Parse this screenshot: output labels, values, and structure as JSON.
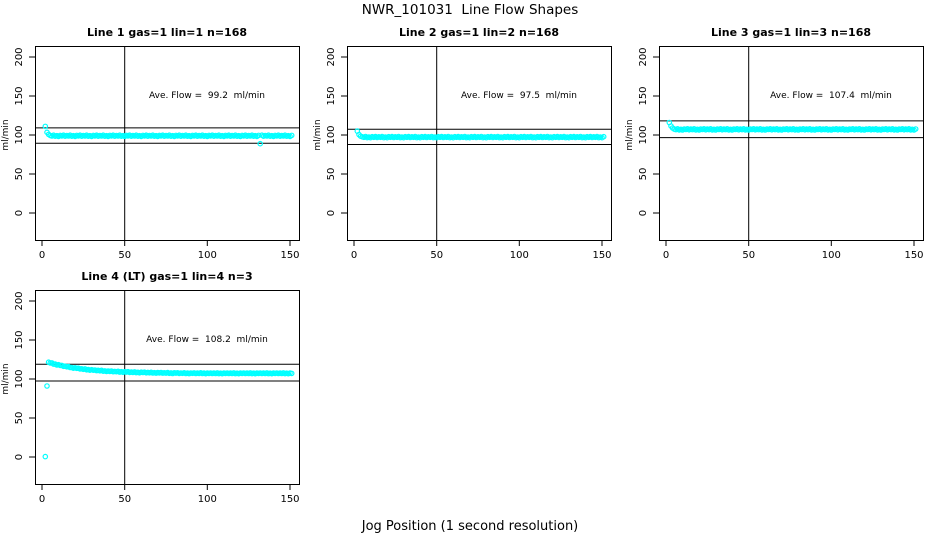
{
  "title": "NWR_101031  Line Flow Shapes",
  "xlabel": "Jog Position (1 second resolution)",
  "colors": {
    "points": "#00ffff",
    "axis": "#000000",
    "background": "#ffffff"
  },
  "chart_data": [
    {
      "type": "scatter",
      "title": "Line 1 gas=1 lin=1 n=168",
      "ylabel": "ml/min",
      "annotation": "Ave. Flow =  99.2  ml/min",
      "ave_flow": 99.2,
      "ref_lines_y": [
        109.1,
        89.3
      ],
      "vline_x": 50,
      "xlim": [
        -4.5,
        156
      ],
      "ylim": [
        -35,
        215
      ],
      "xticks": [
        0,
        50,
        100,
        150
      ],
      "yticks": [
        0,
        50,
        100,
        150,
        200
      ],
      "x_start": 2,
      "x_step": 1,
      "y": [
        111.0,
        103.5,
        100.8,
        99.4,
        98.7,
        99.8,
        98.4,
        99.1,
        98.2,
        99.5,
        98.8,
        99.7,
        98.5,
        99.4,
        98.7,
        99.8,
        98.4,
        99.1,
        98.2,
        99.5,
        98.8,
        99.7,
        98.5,
        99.4,
        98.7,
        99.8,
        98.4,
        99.1,
        98.2,
        99.5,
        98.8,
        99.7,
        98.5,
        99.4,
        98.7,
        99.8,
        98.4,
        99.1,
        98.2,
        99.5,
        98.8,
        99.7,
        98.5,
        99.4,
        98.7,
        99.8,
        98.4,
        99.1,
        98.2,
        99.5,
        98.8,
        99.7,
        98.5,
        99.4,
        98.7,
        99.8,
        98.4,
        99.1,
        98.2,
        99.5,
        98.8,
        99.7,
        98.5,
        99.4,
        98.7,
        99.8,
        98.4,
        99.1,
        98.2,
        99.5,
        98.8,
        99.7,
        98.5,
        99.4,
        98.7,
        99.8,
        98.4,
        99.1,
        98.2,
        99.5,
        98.8,
        99.7,
        98.5,
        99.4,
        98.7,
        99.8,
        98.4,
        99.1,
        98.2,
        99.5,
        98.8,
        99.7,
        98.5,
        99.4,
        98.7,
        99.8,
        98.4,
        99.1,
        98.2,
        99.5,
        98.8,
        99.7,
        98.5,
        99.4,
        98.7,
        99.8,
        98.4,
        99.1,
        98.2,
        99.5,
        98.8,
        99.7,
        98.5,
        99.4,
        98.7,
        99.8,
        98.4,
        99.1,
        98.2,
        99.5,
        98.8,
        99.7,
        98.5,
        99.4,
        98.7,
        99.8,
        98.4,
        99.1,
        98.2,
        99.5,
        88.8,
        99.7,
        98.5,
        99.4,
        98.7,
        99.8,
        98.4,
        99.1,
        98.2,
        99.5,
        98.8,
        99.7,
        98.5,
        99.4,
        98.7,
        99.8,
        98.4,
        99.1,
        98.2,
        99.5
      ]
    },
    {
      "type": "scatter",
      "title": "Line 2 gas=1 lin=2 n=168",
      "ylabel": "ml/min",
      "annotation": "Ave. Flow =  97.5  ml/min",
      "ave_flow": 97.5,
      "ref_lines_y": [
        107.3,
        87.8
      ],
      "vline_x": 50,
      "xlim": [
        -4.5,
        156
      ],
      "ylim": [
        -35,
        215
      ],
      "xticks": [
        0,
        50,
        100,
        150
      ],
      "yticks": [
        0,
        50,
        100,
        150,
        200
      ],
      "x_start": 2,
      "x_step": 1,
      "y": [
        105.0,
        100.5,
        98.5,
        97.7,
        97.0,
        98.1,
        96.7,
        97.4,
        96.5,
        97.8,
        97.1,
        98.0,
        96.8,
        97.7,
        97.0,
        98.1,
        96.7,
        97.4,
        96.5,
        97.8,
        97.1,
        98.0,
        96.8,
        97.7,
        97.0,
        98.1,
        96.7,
        97.4,
        96.5,
        97.8,
        97.1,
        98.0,
        96.8,
        97.7,
        97.0,
        98.1,
        96.7,
        97.4,
        96.5,
        97.8,
        97.1,
        98.0,
        96.8,
        97.7,
        97.0,
        98.1,
        96.7,
        97.4,
        96.5,
        97.8,
        97.1,
        98.0,
        96.8,
        97.7,
        97.0,
        98.1,
        96.7,
        97.4,
        96.5,
        97.8,
        97.1,
        98.0,
        96.8,
        97.7,
        97.0,
        98.1,
        96.7,
        97.4,
        96.5,
        97.8,
        97.1,
        98.0,
        96.8,
        97.7,
        97.0,
        98.1,
        96.7,
        97.4,
        96.5,
        97.8,
        97.1,
        98.0,
        96.8,
        97.7,
        97.0,
        98.1,
        96.7,
        97.4,
        96.5,
        97.8,
        97.1,
        98.0,
        96.8,
        97.7,
        97.0,
        98.1,
        96.7,
        97.4,
        96.5,
        97.8,
        97.1,
        98.0,
        96.8,
        97.7,
        97.0,
        98.1,
        96.7,
        97.4,
        96.5,
        97.8,
        97.1,
        98.0,
        96.8,
        97.7,
        97.0,
        98.1,
        96.7,
        97.4,
        96.5,
        97.8,
        97.1,
        98.0,
        96.8,
        97.7,
        97.0,
        98.1,
        96.7,
        97.4,
        96.5,
        97.8,
        97.1,
        98.0,
        96.8,
        97.7,
        97.0,
        98.1,
        96.7,
        97.4,
        96.5,
        97.8,
        97.1,
        98.0,
        96.8,
        97.7,
        97.0,
        98.1,
        96.7,
        97.4,
        96.5,
        97.8
      ]
    },
    {
      "type": "scatter",
      "title": "Line 3 gas=1 lin=3 n=168",
      "ylabel": "ml/min",
      "annotation": "Ave. Flow =  107.4  ml/min",
      "ave_flow": 107.4,
      "ref_lines_y": [
        118.1,
        96.7
      ],
      "vline_x": 50,
      "xlim": [
        -4.5,
        156
      ],
      "ylim": [
        -35,
        215
      ],
      "xticks": [
        0,
        50,
        100,
        150
      ],
      "yticks": [
        0,
        50,
        100,
        150,
        200
      ],
      "x_start": 2,
      "x_step": 1,
      "y": [
        116.0,
        111.5,
        109.0,
        107.6,
        106.9,
        108.0,
        106.6,
        107.3,
        106.4,
        107.7,
        107.0,
        107.9,
        106.7,
        107.6,
        106.9,
        108.0,
        106.6,
        107.3,
        106.4,
        107.7,
        107.0,
        107.9,
        106.7,
        107.6,
        106.9,
        108.0,
        106.6,
        107.3,
        106.4,
        107.7,
        107.0,
        107.9,
        106.7,
        107.6,
        106.9,
        108.0,
        106.6,
        107.3,
        106.4,
        107.7,
        107.0,
        107.9,
        106.7,
        107.6,
        106.9,
        108.0,
        106.6,
        107.3,
        106.4,
        107.7,
        107.0,
        107.9,
        106.7,
        107.6,
        106.9,
        108.0,
        106.6,
        107.3,
        106.4,
        107.7,
        107.0,
        107.9,
        106.7,
        107.6,
        106.9,
        108.0,
        106.6,
        107.3,
        106.4,
        107.7,
        107.0,
        107.9,
        106.7,
        107.6,
        106.9,
        108.0,
        106.6,
        107.3,
        106.4,
        107.7,
        107.0,
        107.9,
        106.7,
        107.6,
        106.9,
        108.0,
        106.6,
        107.3,
        106.4,
        107.7,
        107.0,
        107.9,
        106.7,
        107.6,
        106.9,
        108.0,
        106.6,
        107.3,
        106.4,
        107.7,
        107.0,
        107.9,
        106.7,
        107.6,
        106.9,
        108.0,
        106.6,
        107.3,
        106.4,
        107.7,
        107.0,
        107.9,
        106.7,
        107.6,
        106.9,
        108.0,
        106.6,
        107.3,
        106.4,
        107.7,
        107.0,
        107.9,
        106.7,
        107.6,
        106.9,
        108.0,
        106.6,
        107.3,
        106.4,
        107.7,
        107.0,
        107.9,
        106.7,
        107.6,
        106.9,
        108.0,
        106.6,
        107.3,
        106.4,
        107.7,
        107.0,
        107.9,
        106.7,
        107.6,
        106.9,
        108.0,
        106.6,
        107.3,
        106.4,
        107.7
      ]
    },
    {
      "type": "scatter",
      "title": "Line 4 (LT) gas=1 lin=4 n=3",
      "ylabel": "ml/min",
      "annotation": "Ave. Flow =  108.2  ml/min",
      "ave_flow": 108.2,
      "ref_lines_y": [
        119.0,
        97.4
      ],
      "vline_x": 50,
      "xlim": [
        -4.5,
        156
      ],
      "ylim": [
        -35,
        215
      ],
      "xticks": [
        0,
        50,
        100,
        150
      ],
      "yticks": [
        0,
        50,
        100,
        150,
        200
      ],
      "x_start": 2,
      "x_step": 1,
      "y": [
        0.5,
        91.0,
        121.5,
        120.5,
        120.6,
        119.1,
        119.1,
        118.0,
        118.3,
        117.4,
        117.4,
        116.3,
        116.4,
        115.6,
        115.9,
        114.7,
        114.8,
        113.9,
        114.4,
        113.7,
        113.9,
        112.9,
        113.1,
        112.5,
        113.0,
        111.8,
        112.1,
        111.3,
        111.9,
        111.3,
        111.6,
        110.8,
        111.1,
        110.5,
        111.1,
        110.0,
        110.4,
        109.7,
        110.3,
        109.8,
        110.2,
        109.4,
        109.8,
        109.3,
        109.9,
        108.9,
        109.3,
        108.6,
        109.3,
        108.9,
        109.3,
        108.5,
        108.9,
        108.5,
        109.1,
        108.2,
        108.6,
        108.0,
        108.7,
        108.3,
        108.7,
        108.0,
        108.4,
        108.0,
        108.6,
        107.7,
        108.1,
        107.5,
        108.2,
        107.8,
        108.3,
        107.5,
        108.0,
        107.6,
        108.2,
        107.3,
        107.8,
        107.1,
        107.9,
        107.5,
        108.0,
        107.2,
        107.7,
        107.3,
        108.0,
        107.1,
        107.5,
        106.9,
        107.7,
        107.3,
        107.8,
        107.1,
        107.6,
        107.2,
        107.9,
        107.0,
        107.5,
        106.8,
        107.6,
        107.2,
        107.7,
        107.0,
        107.5,
        107.1,
        107.8,
        106.9,
        107.4,
        106.8,
        107.6,
        107.2,
        107.7,
        107.0,
        107.5,
        107.1,
        107.8,
        106.9,
        107.4,
        106.8,
        107.6,
        107.2,
        107.7,
        107.0,
        107.5,
        107.1,
        107.8,
        106.9,
        107.4,
        106.8,
        107.6,
        107.2,
        107.7,
        107.0,
        107.5,
        107.1,
        107.8,
        106.9,
        107.4,
        106.8,
        107.6,
        107.2,
        107.7,
        107.0,
        107.5,
        107.1,
        107.8,
        106.9,
        107.4,
        106.8,
        107.6,
        107.2
      ]
    }
  ]
}
